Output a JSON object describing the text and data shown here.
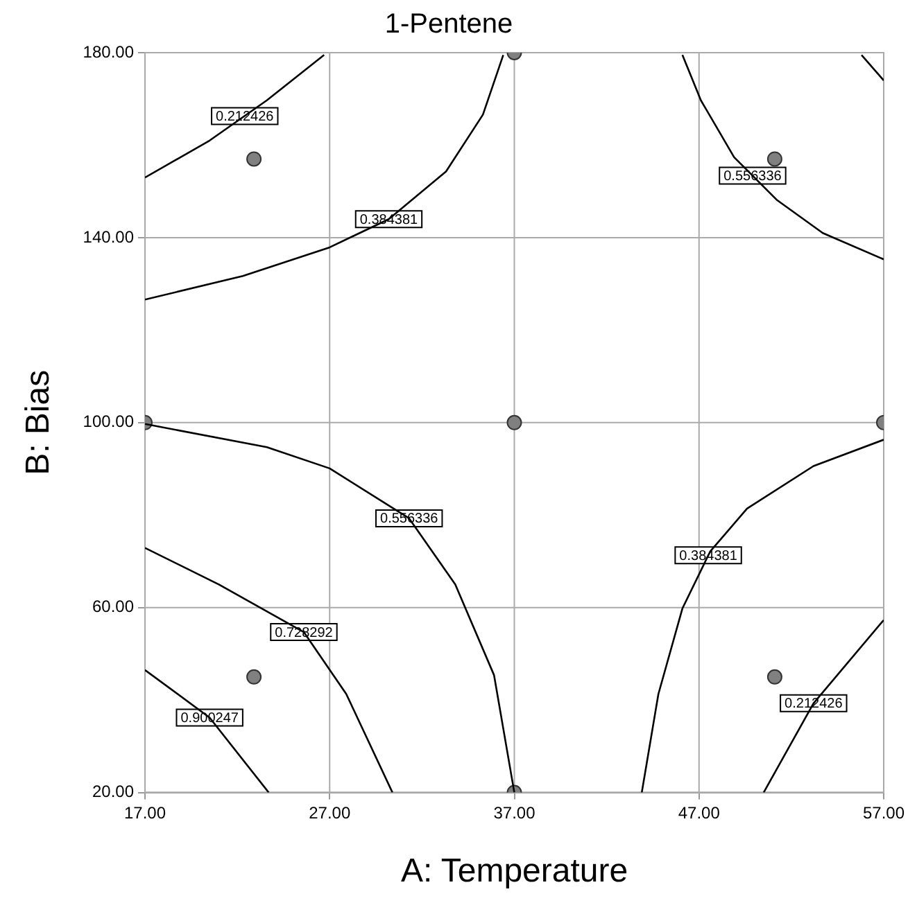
{
  "chart_data": {
    "type": "line",
    "title": "1-Pentene",
    "xlabel": "A: Temperature",
    "ylabel": "B: Bias",
    "xlim": [
      17,
      57
    ],
    "xticks": [
      {
        "value": 17,
        "label": "17.00"
      },
      {
        "value": 27,
        "label": "27.00"
      },
      {
        "value": 37,
        "label": "37.00"
      },
      {
        "value": 47,
        "label": "47.00"
      },
      {
        "value": 57,
        "label": "57.00"
      }
    ],
    "ylim": [
      20,
      180
    ],
    "yticks": [
      {
        "value": 20,
        "label": "20.00"
      },
      {
        "value": 60,
        "label": "60.00"
      },
      {
        "value": 100,
        "label": "100.00"
      },
      {
        "value": 140,
        "label": "140.00"
      },
      {
        "value": 180,
        "label": "180.00"
      }
    ],
    "grid": true,
    "legend": false,
    "marker": "none",
    "line_style": "solid",
    "series": [
      {
        "color": "#000000",
        "x": [
          17,
          20.5,
          23.6,
          26.7
        ],
        "values": [
          153,
          161,
          169.7,
          179.5
        ]
      },
      {
        "color": "#000000",
        "x": [
          17,
          22.3,
          27,
          30.2,
          33.3,
          35.3,
          36.4
        ],
        "values": [
          126.6,
          131.7,
          137.9,
          144,
          154.3,
          166.6,
          179.5
        ]
      },
      {
        "color": "#000000",
        "x": [
          46.1,
          47.1,
          48.9,
          51.2,
          53.7,
          57
        ],
        "values": [
          179.5,
          169.7,
          157.4,
          148.2,
          141,
          135.3
        ]
      },
      {
        "color": "#000000",
        "x": [
          55.8,
          57
        ],
        "values": [
          179.5,
          174
        ]
      },
      {
        "color": "#000000",
        "x": [
          17,
          23.6,
          27,
          31.3,
          33.8,
          35.9,
          37
        ],
        "values": [
          99.7,
          94.7,
          90.1,
          79.3,
          65,
          45.4,
          20
        ]
      },
      {
        "color": "#000000",
        "x": [
          17,
          21,
          25.6,
          27.9,
          30.4
        ],
        "values": [
          72.9,
          65,
          54.7,
          41.3,
          20
        ]
      },
      {
        "color": "#000000",
        "x": [
          17,
          20.5,
          23.7
        ],
        "values": [
          46.5,
          36.2,
          20
        ]
      },
      {
        "color": "#000000",
        "x": [
          43.9,
          44.8,
          46.1,
          47.6,
          49.6,
          53.2,
          57
        ],
        "values": [
          20,
          41.3,
          59.8,
          72.1,
          81.4,
          90.6,
          96.3
        ]
      },
      {
        "color": "#000000",
        "x": [
          50.5,
          53.2,
          57
        ],
        "values": [
          20,
          39.3,
          57.3
        ]
      },
      {
        "type": "scatter",
        "marker": "circle",
        "color": "#808080",
        "x": [
          22.9,
          37,
          51.1,
          17,
          37,
          57,
          22.9,
          37,
          51.1
        ],
        "values": [
          157,
          180,
          157,
          100,
          100,
          100,
          45,
          20,
          45
        ]
      }
    ],
    "annotations": [
      {
        "text": "0.212426",
        "x": 22.4,
        "y": 166.3
      },
      {
        "text": "0.384381",
        "x": 30.2,
        "y": 144
      },
      {
        "text": "0.556336",
        "x": 49.9,
        "y": 153.4
      },
      {
        "text": "0.556336",
        "x": 31.3,
        "y": 79.3
      },
      {
        "text": "0.728292",
        "x": 25.6,
        "y": 54.7
      },
      {
        "text": "0.900247",
        "x": 20.5,
        "y": 36.2
      },
      {
        "text": "0.384381",
        "x": 47.5,
        "y": 71.3
      },
      {
        "text": "0.212426",
        "x": 53.2,
        "y": 39.3
      }
    ]
  }
}
